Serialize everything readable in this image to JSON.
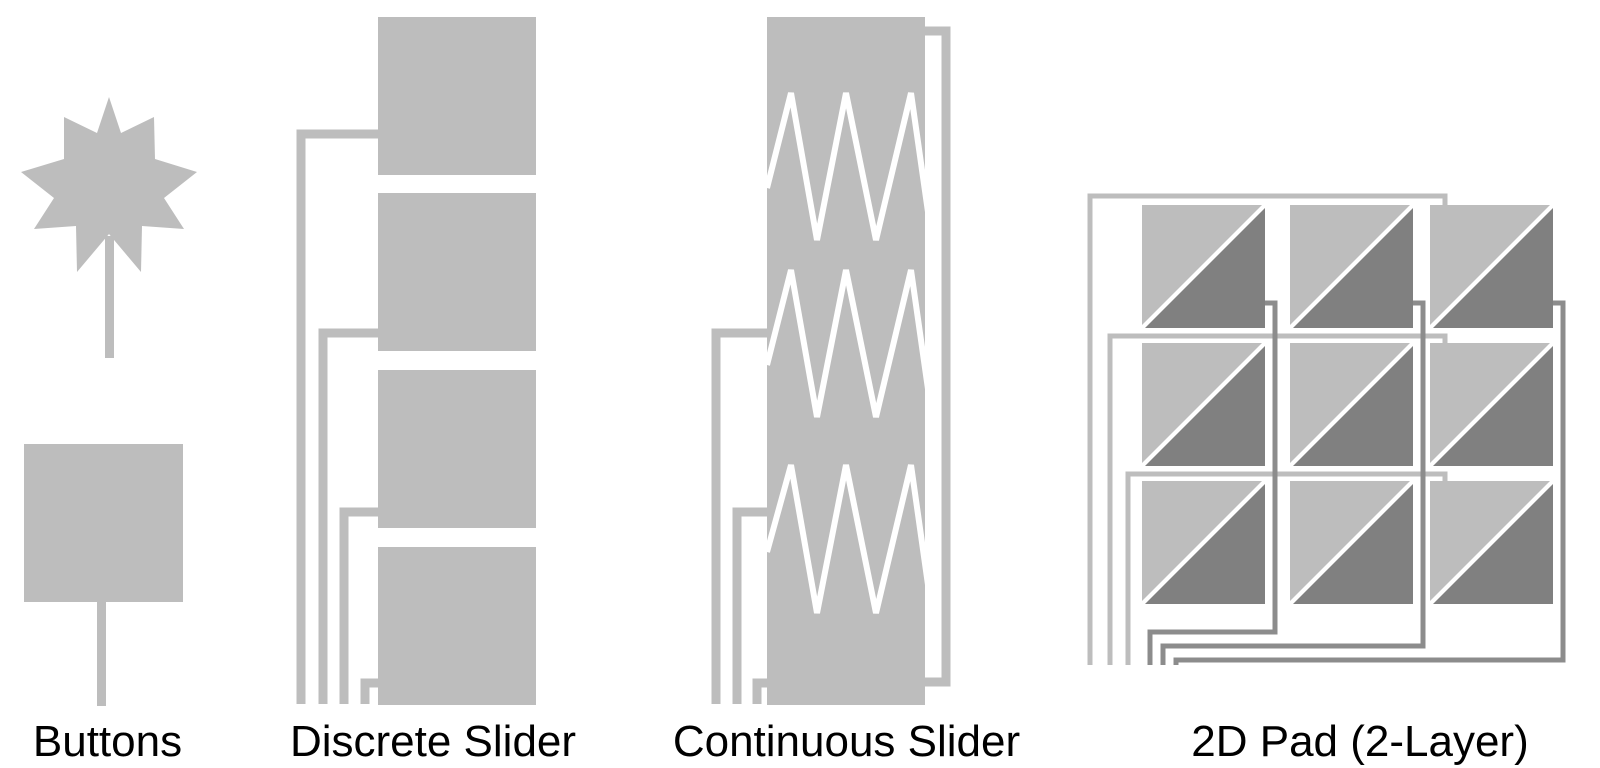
{
  "colors": {
    "electrode": "#bdbdbd",
    "trace": "#bdbdbd",
    "bottom_layer": "#808080",
    "bottom_trace": "#8c8c8c",
    "background": "#ffffff"
  },
  "panels": [
    {
      "caption": "Buttons"
    },
    {
      "caption": "Discrete Slider"
    },
    {
      "caption": "Continuous Slider"
    },
    {
      "caption": "2D Pad (2-Layer)"
    }
  ]
}
